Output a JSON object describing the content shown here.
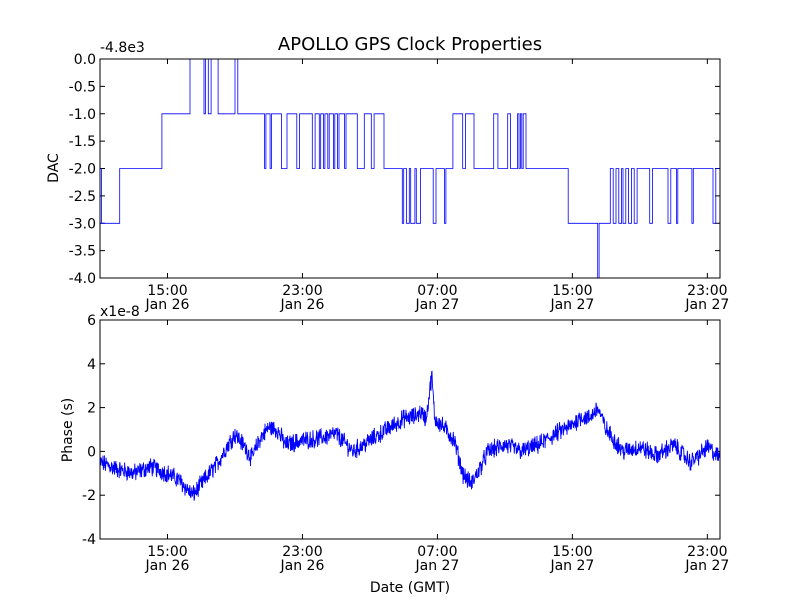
{
  "figure": {
    "title": "APOLLO GPS Clock Properties",
    "xlabel": "Date (GMT)",
    "line_color": "#0000ff"
  },
  "chart_data": [
    {
      "type": "line",
      "ylabel": "DAC",
      "offset_label": "-4.8e3",
      "ylim": [
        -4.0,
        0.0
      ],
      "yticks": [
        "0.0",
        "-0.5",
        "-1.0",
        "-1.5",
        "-2.0",
        "-2.5",
        "-3.0",
        "-3.5",
        "-4.0"
      ],
      "xlim": [
        "Jan 26 11:00",
        "Jan 27 23:45"
      ],
      "xticks": [
        {
          "time": "15:00",
          "date": "Jan 26"
        },
        {
          "time": "23:00",
          "date": "Jan 26"
        },
        {
          "time": "07:00",
          "date": "Jan 27"
        },
        {
          "time": "15:00",
          "date": "Jan 27"
        },
        {
          "time": "23:00",
          "date": "Jan 27"
        }
      ],
      "series": [
        {
          "style": "step",
          "points": [
            [
              "Jan 26 11:00",
              -2.0
            ],
            [
              "Jan 26 11:05",
              -3.0
            ],
            [
              "Jan 26 12:10",
              -2.0
            ],
            [
              "Jan 26 14:40",
              -1.0
            ],
            [
              "Jan 26 16:20",
              0.0
            ],
            [
              "Jan 26 17:10",
              -1.0
            ],
            [
              "Jan 26 17:15",
              0.0
            ],
            [
              "Jan 26 17:25",
              -1.0
            ],
            [
              "Jan 26 17:35",
              0.0
            ],
            [
              "Jan 26 18:00",
              -1.0
            ],
            [
              "Jan 26 19:00",
              0.0
            ],
            [
              "Jan 26 19:10",
              -1.0
            ],
            [
              "Jan 26 20:45",
              -2.0
            ],
            [
              "Jan 26 20:50",
              -1.0
            ],
            [
              "Jan 26 21:05",
              -2.0
            ],
            [
              "Jan 26 21:10",
              -1.0
            ],
            [
              "Jan 26 21:45",
              -2.0
            ],
            [
              "Jan 26 22:05",
              -1.0
            ],
            [
              "Jan 26 22:40",
              -2.0
            ],
            [
              "Jan 26 22:50",
              -1.0
            ],
            [
              "Jan 26 23:35",
              -2.0
            ],
            [
              "Jan 26 23:45",
              -1.0
            ],
            [
              "Jan 27 00:00",
              -2.0
            ],
            [
              "Jan 27 00:05",
              -1.0
            ],
            [
              "Jan 27 00:15",
              -2.0
            ],
            [
              "Jan 27 00:20",
              -1.0
            ],
            [
              "Jan 27 00:30",
              -2.0
            ],
            [
              "Jan 27 00:35",
              -1.0
            ],
            [
              "Jan 27 00:50",
              -2.0
            ],
            [
              "Jan 27 00:55",
              -1.0
            ],
            [
              "Jan 27 01:05",
              -2.0
            ],
            [
              "Jan 27 01:10",
              -1.0
            ],
            [
              "Jan 27 01:30",
              -2.0
            ],
            [
              "Jan 27 01:35",
              -1.0
            ],
            [
              "Jan 27 02:15",
              -2.0
            ],
            [
              "Jan 27 02:40",
              -1.0
            ],
            [
              "Jan 27 03:05",
              -2.0
            ],
            [
              "Jan 27 03:15",
              -1.0
            ],
            [
              "Jan 27 03:50",
              -2.0
            ],
            [
              "Jan 27 04:55",
              -3.0
            ],
            [
              "Jan 27 05:00",
              -2.0
            ],
            [
              "Jan 27 05:10",
              -3.0
            ],
            [
              "Jan 27 05:20",
              -2.0
            ],
            [
              "Jan 27 05:25",
              -3.0
            ],
            [
              "Jan 27 05:40",
              -2.0
            ],
            [
              "Jan 27 05:45",
              -3.0
            ],
            [
              "Jan 27 06:00",
              -2.0
            ],
            [
              "Jan 27 06:45",
              -3.0
            ],
            [
              "Jan 27 06:55",
              -2.0
            ],
            [
              "Jan 27 07:25",
              -3.0
            ],
            [
              "Jan 27 07:30",
              -2.0
            ],
            [
              "Jan 27 07:55",
              -1.0
            ],
            [
              "Jan 27 08:30",
              -2.0
            ],
            [
              "Jan 27 08:40",
              -1.0
            ],
            [
              "Jan 27 09:10",
              -2.0
            ],
            [
              "Jan 27 10:20",
              -1.0
            ],
            [
              "Jan 27 10:35",
              -2.0
            ],
            [
              "Jan 27 11:10",
              -1.0
            ],
            [
              "Jan 27 11:20",
              -2.0
            ],
            [
              "Jan 27 11:45",
              -1.0
            ],
            [
              "Jan 27 11:50",
              -2.0
            ],
            [
              "Jan 27 11:55",
              -1.0
            ],
            [
              "Jan 27 12:00",
              -2.0
            ],
            [
              "Jan 27 12:05",
              -1.0
            ],
            [
              "Jan 27 12:15",
              -2.0
            ],
            [
              "Jan 27 14:45",
              -3.0
            ],
            [
              "Jan 27 16:30",
              -4.0
            ],
            [
              "Jan 27 16:35",
              -3.0
            ],
            [
              "Jan 27 17:15",
              -2.0
            ],
            [
              "Jan 27 17:25",
              -3.0
            ],
            [
              "Jan 27 17:35",
              -2.0
            ],
            [
              "Jan 27 17:45",
              -3.0
            ],
            [
              "Jan 27 17:55",
              -2.0
            ],
            [
              "Jan 27 18:00",
              -3.0
            ],
            [
              "Jan 27 18:10",
              -2.0
            ],
            [
              "Jan 27 18:20",
              -3.0
            ],
            [
              "Jan 27 18:30",
              -2.0
            ],
            [
              "Jan 27 18:40",
              -3.0
            ],
            [
              "Jan 27 18:50",
              -2.0
            ],
            [
              "Jan 27 19:35",
              -3.0
            ],
            [
              "Jan 27 19:45",
              -2.0
            ],
            [
              "Jan 27 20:40",
              -3.0
            ],
            [
              "Jan 27 20:50",
              -2.0
            ],
            [
              "Jan 27 21:10",
              -3.0
            ],
            [
              "Jan 27 21:15",
              -2.0
            ],
            [
              "Jan 27 22:05",
              -3.0
            ],
            [
              "Jan 27 22:10",
              -2.0
            ],
            [
              "Jan 27 23:20",
              -3.0
            ],
            [
              "Jan 27 23:30",
              -2.0
            ],
            [
              "Jan 27 23:45",
              -2.0
            ]
          ]
        }
      ]
    },
    {
      "type": "line",
      "ylabel": "Phase (s)",
      "offset_label": "x1e-8",
      "ylim": [
        -4,
        6
      ],
      "yticks": [
        "6",
        "4",
        "2",
        "0",
        "-2",
        "-4"
      ],
      "xlim": [
        "Jan 26 11:00",
        "Jan 27 23:45"
      ],
      "xticks": [
        {
          "time": "15:00",
          "date": "Jan 26"
        },
        {
          "time": "23:00",
          "date": "Jan 26"
        },
        {
          "time": "07:00",
          "date": "Jan 27"
        },
        {
          "time": "15:00",
          "date": "Jan 27"
        },
        {
          "time": "23:00",
          "date": "Jan 27"
        }
      ],
      "series": [
        {
          "style": "noisy-line",
          "noise": 0.35,
          "points": [
            [
              "Jan 26 11:00",
              -0.5
            ],
            [
              "Jan 26 12:00",
              -0.8
            ],
            [
              "Jan 26 13:00",
              -1.0
            ],
            [
              "Jan 26 14:00",
              -0.7
            ],
            [
              "Jan 26 15:00",
              -1.0
            ],
            [
              "Jan 26 15:40",
              -1.3
            ],
            [
              "Jan 26 16:30",
              -2.0
            ],
            [
              "Jan 26 17:00",
              -1.5
            ],
            [
              "Jan 26 18:00",
              -0.5
            ],
            [
              "Jan 26 18:30",
              0.2
            ],
            [
              "Jan 26 19:00",
              0.8
            ],
            [
              "Jan 26 19:30",
              0.3
            ],
            [
              "Jan 26 20:00",
              -0.3
            ],
            [
              "Jan 26 20:30",
              0.6
            ],
            [
              "Jan 26 21:00",
              1.1
            ],
            [
              "Jan 26 21:30",
              1.0
            ],
            [
              "Jan 26 22:00",
              0.3
            ],
            [
              "Jan 26 23:00",
              0.5
            ],
            [
              "Jan 27 00:00",
              0.6
            ],
            [
              "Jan 27 01:00",
              0.8
            ],
            [
              "Jan 27 02:00",
              0.0
            ],
            [
              "Jan 27 03:00",
              0.5
            ],
            [
              "Jan 27 04:00",
              1.0
            ],
            [
              "Jan 27 05:00",
              1.5
            ],
            [
              "Jan 27 05:40",
              1.6
            ],
            [
              "Jan 27 06:00",
              1.8
            ],
            [
              "Jan 27 06:20",
              1.5
            ],
            [
              "Jan 27 06:40",
              3.5
            ],
            [
              "Jan 27 06:50",
              1.5
            ],
            [
              "Jan 27 07:30",
              1.0
            ],
            [
              "Jan 27 08:00",
              0.5
            ],
            [
              "Jan 27 08:30",
              -1.0
            ],
            [
              "Jan 27 09:00",
              -1.5
            ],
            [
              "Jan 27 09:30",
              -0.8
            ],
            [
              "Jan 27 10:00",
              0.0
            ],
            [
              "Jan 27 11:00",
              0.3
            ],
            [
              "Jan 27 12:00",
              0.0
            ],
            [
              "Jan 27 13:00",
              0.3
            ],
            [
              "Jan 27 14:00",
              0.8
            ],
            [
              "Jan 27 15:00",
              1.2
            ],
            [
              "Jan 27 15:30",
              1.6
            ],
            [
              "Jan 27 16:00",
              1.5
            ],
            [
              "Jan 27 16:30",
              2.0
            ],
            [
              "Jan 27 17:00",
              1.0
            ],
            [
              "Jan 27 17:30",
              0.5
            ],
            [
              "Jan 27 18:00",
              0.0
            ],
            [
              "Jan 27 19:00",
              0.2
            ],
            [
              "Jan 27 20:00",
              -0.2
            ],
            [
              "Jan 27 21:00",
              0.3
            ],
            [
              "Jan 27 22:00",
              -0.5
            ],
            [
              "Jan 27 22:30",
              -0.2
            ],
            [
              "Jan 27 23:00",
              0.2
            ],
            [
              "Jan 27 23:45",
              -0.3
            ]
          ]
        }
      ]
    }
  ]
}
